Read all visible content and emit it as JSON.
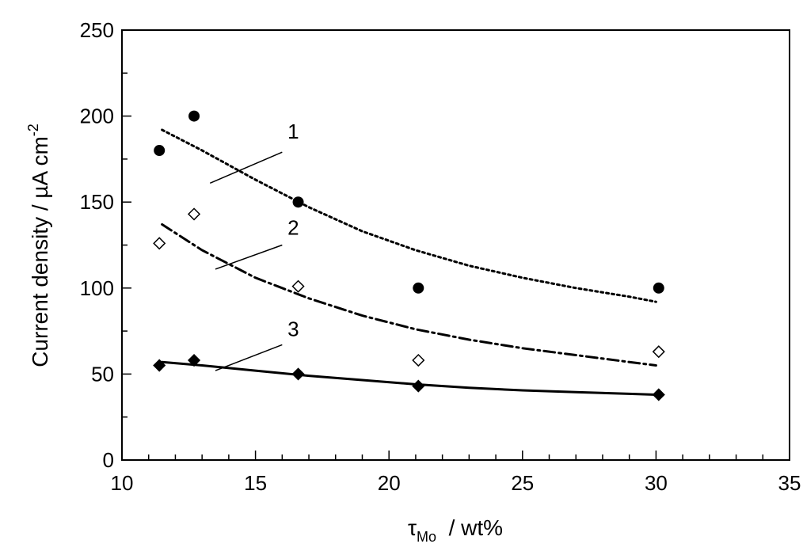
{
  "chart_data": {
    "type": "scatter",
    "xlabel": {
      "main": "τ",
      "sub": "Mo",
      "rest": "  / wt%"
    },
    "ylabel": {
      "main": "Current density / µA cm",
      "sup": "-2"
    },
    "xlim": [
      10,
      35
    ],
    "ylim": [
      0,
      250
    ],
    "x_ticks": [
      10,
      15,
      20,
      25,
      30,
      35
    ],
    "y_ticks": [
      0,
      50,
      100,
      150,
      200,
      250
    ],
    "grid": false,
    "series": [
      {
        "id": "1",
        "marker": "filled-circle",
        "line_style": "dotted",
        "points": [
          [
            11.4,
            180
          ],
          [
            12.7,
            200
          ],
          [
            16.6,
            150
          ],
          [
            21.1,
            100
          ],
          [
            30.1,
            100
          ]
        ],
        "fit": [
          [
            11.5,
            192
          ],
          [
            13,
            180
          ],
          [
            15,
            163
          ],
          [
            17,
            147
          ],
          [
            19,
            133
          ],
          [
            21,
            122
          ],
          [
            23,
            113
          ],
          [
            25,
            106
          ],
          [
            27,
            100
          ],
          [
            29,
            95
          ],
          [
            30,
            92
          ]
        ]
      },
      {
        "id": "2",
        "marker": "open-diamond",
        "line_style": "dash-dot",
        "points": [
          [
            11.4,
            126
          ],
          [
            12.7,
            143
          ],
          [
            16.6,
            101
          ],
          [
            21.1,
            58
          ],
          [
            30.1,
            63
          ]
        ],
        "fit": [
          [
            11.5,
            137
          ],
          [
            13,
            122
          ],
          [
            15,
            106
          ],
          [
            17,
            94
          ],
          [
            19,
            84
          ],
          [
            21,
            76
          ],
          [
            23,
            70
          ],
          [
            25,
            65
          ],
          [
            27,
            61
          ],
          [
            29,
            57
          ],
          [
            30,
            55
          ]
        ]
      },
      {
        "id": "3",
        "marker": "filled-diamond",
        "line_style": "solid",
        "points": [
          [
            11.4,
            55
          ],
          [
            12.7,
            58
          ],
          [
            16.6,
            50
          ],
          [
            21.1,
            43
          ],
          [
            30.1,
            38
          ]
        ],
        "fit": [
          [
            11.5,
            57
          ],
          [
            13,
            55
          ],
          [
            15,
            52
          ],
          [
            17,
            49
          ],
          [
            19,
            46.5
          ],
          [
            21,
            44
          ],
          [
            23,
            42
          ],
          [
            25,
            40.5
          ],
          [
            27,
            39.5
          ],
          [
            29,
            38.5
          ],
          [
            30,
            38
          ]
        ]
      }
    ],
    "annotations": [
      {
        "text": "1",
        "series": "1",
        "label_at": [
          16.2,
          187
        ],
        "leader_from": [
          16.0,
          179
        ],
        "leader_to": [
          13.3,
          161
        ]
      },
      {
        "text": "2",
        "series": "2",
        "label_at": [
          16.2,
          131
        ],
        "leader_from": [
          16.0,
          125
        ],
        "leader_to": [
          13.5,
          111
        ]
      },
      {
        "text": "3",
        "series": "3",
        "label_at": [
          16.2,
          72
        ],
        "leader_from": [
          16.0,
          67
        ],
        "leader_to": [
          13.5,
          52
        ]
      }
    ]
  }
}
